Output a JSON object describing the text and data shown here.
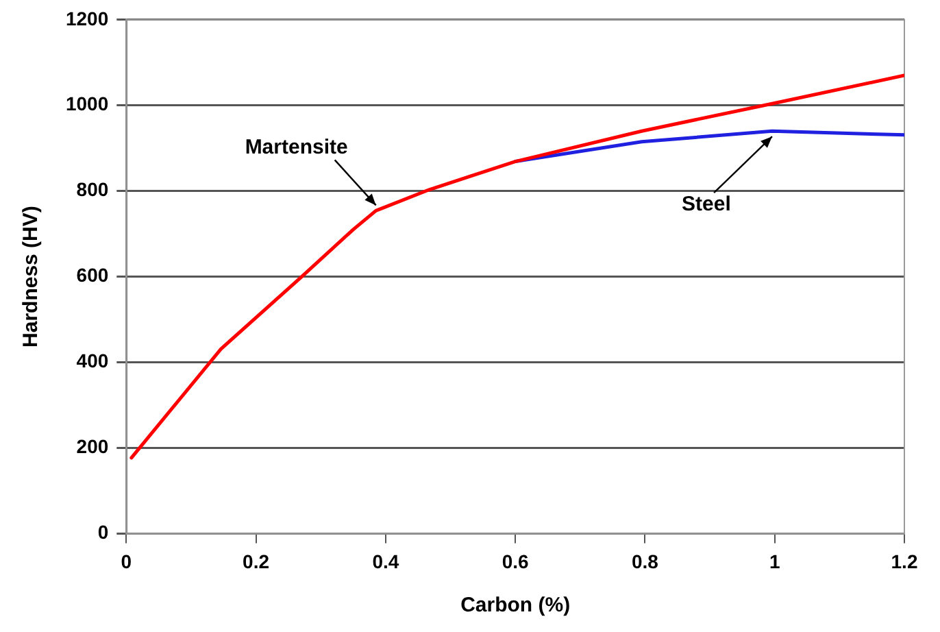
{
  "chart_data": {
    "type": "line",
    "xlabel": "Carbon (%)",
    "ylabel": "Hardness (HV)",
    "xlim": [
      0,
      1.2
    ],
    "xticks": [
      0,
      0.2,
      0.4,
      0.6,
      0.8,
      1,
      1.2
    ],
    "ylim": [
      0,
      1200
    ],
    "yticks": [
      0,
      200,
      400,
      600,
      800,
      1000,
      1200
    ],
    "grid": "y",
    "legend": false,
    "marker": "none",
    "line_style": "solid",
    "series": [
      {
        "color": "#ff0000",
        "x": [
          0.008,
          0.146,
          0.27,
          0.35,
          0.385,
          0.467,
          0.6,
          0.795,
          0.996,
          1.2
        ],
        "values": [
          177,
          431,
          599,
          710,
          754,
          803,
          869,
          940,
          1004,
          1070
        ]
      },
      {
        "color": "#2020e0",
        "x": [
          0.6,
          0.795,
          0.996,
          1.2
        ],
        "values": [
          869,
          915,
          940,
          931
        ]
      }
    ],
    "annotations": [
      {
        "text": "Martensite",
        "x": 0.385,
        "y": 754
      },
      {
        "text": "Steel",
        "x": 0.996,
        "y": 940
      }
    ]
  }
}
